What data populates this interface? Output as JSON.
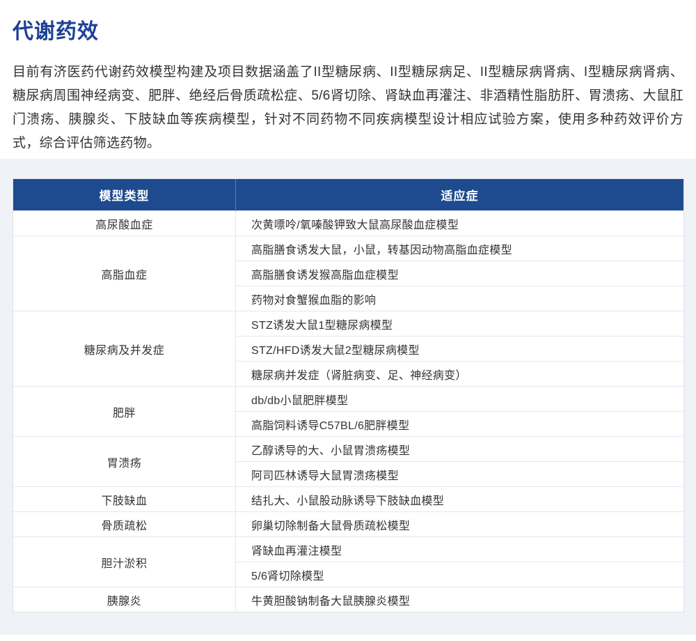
{
  "page": {
    "title": "代谢药效",
    "intro": "目前有济医药代谢药效模型构建及项目数据涵盖了II型糖尿病、II型糖尿病足、II型糖尿病肾病、I型糖尿病肾病、糖尿病周围神经病变、肥胖、绝经后骨质疏松症、5/6肾切除、肾缺血再灌注、非酒精性脂肪肝、胃溃疡、大鼠肛门溃疡、胰腺炎、下肢缺血等疾病模型，针对不同药物不同疾病模型设计相应试验方案，使用多种药效评价方式，综合评估筛选药物。"
  },
  "colors": {
    "title_blue": "#1c4094",
    "header_bg": "#1e4b8f",
    "header_text": "#ffffff",
    "section_bg": "#eff2f6",
    "row_light": "#edf1f6",
    "row_white": "#ffffff",
    "body_text": "#333333",
    "row_border": "#e4e8ee"
  },
  "table": {
    "headers": [
      "模型类型",
      "适应症"
    ],
    "groups": [
      {
        "type": "高尿酸血症",
        "rows": [
          "次黄嘌呤/氧嗪酸钾致大鼠高尿酸血症模型"
        ]
      },
      {
        "type": "高脂血症",
        "rows": [
          "高脂膳食诱发大鼠，小鼠，转基因动物高脂血症模型",
          "高脂膳食诱发猴高脂血症模型",
          "药物对食蟹猴血脂的影响"
        ]
      },
      {
        "type": "糖尿病及并发症",
        "rows": [
          "STZ诱发大鼠1型糖尿病模型",
          "STZ/HFD诱发大鼠2型糖尿病模型",
          "糖尿病并发症（肾脏病变、足、神经病变）"
        ]
      },
      {
        "type": "肥胖",
        "rows": [
          "db/db小鼠肥胖模型",
          "高脂饲料诱导C57BL/6肥胖模型"
        ]
      },
      {
        "type": "胃溃疡",
        "rows": [
          "乙醇诱导的大、小鼠胃溃疡模型",
          "阿司匹林诱导大鼠胃溃疡模型"
        ]
      },
      {
        "type": "下肢缺血",
        "rows": [
          "结扎大、小鼠股动脉诱导下肢缺血模型"
        ]
      },
      {
        "type": "骨质疏松",
        "rows": [
          "卵巢切除制备大鼠骨质疏松模型"
        ]
      },
      {
        "type": "胆汁淤积",
        "rows": [
          "肾缺血再灌注模型",
          "5/6肾切除模型"
        ]
      },
      {
        "type": "胰腺炎",
        "rows": [
          "牛黄胆酸钠制备大鼠胰腺炎模型"
        ]
      }
    ]
  }
}
